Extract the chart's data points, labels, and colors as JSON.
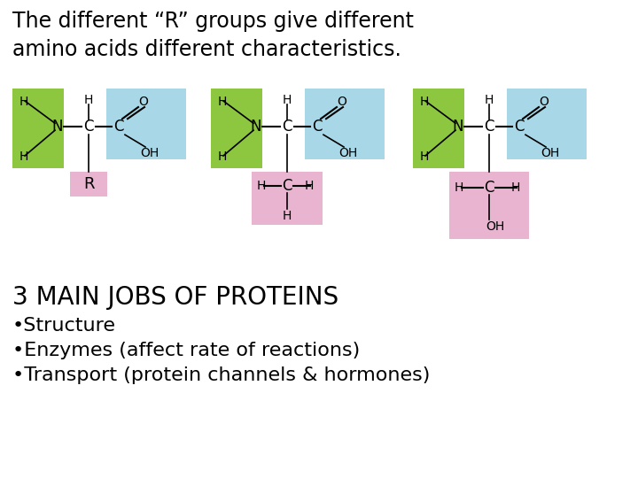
{
  "title_line1": "The different “R” groups give different",
  "title_line2": "amino acids different characteristics.",
  "bg_color": "#ffffff",
  "green_color": "#8dc63f",
  "blue_color": "#a8d8e8",
  "pink_color": "#e8b4d0",
  "pink_r_color": "#e8b4d0",
  "text_color": "#000000",
  "bottom_text": [
    "3 MAIN JOBS OF PROTEINS",
    "•Structure",
    "•Enzymes (affect rate of reactions)",
    "•Transport (protein channels & hormones)"
  ]
}
